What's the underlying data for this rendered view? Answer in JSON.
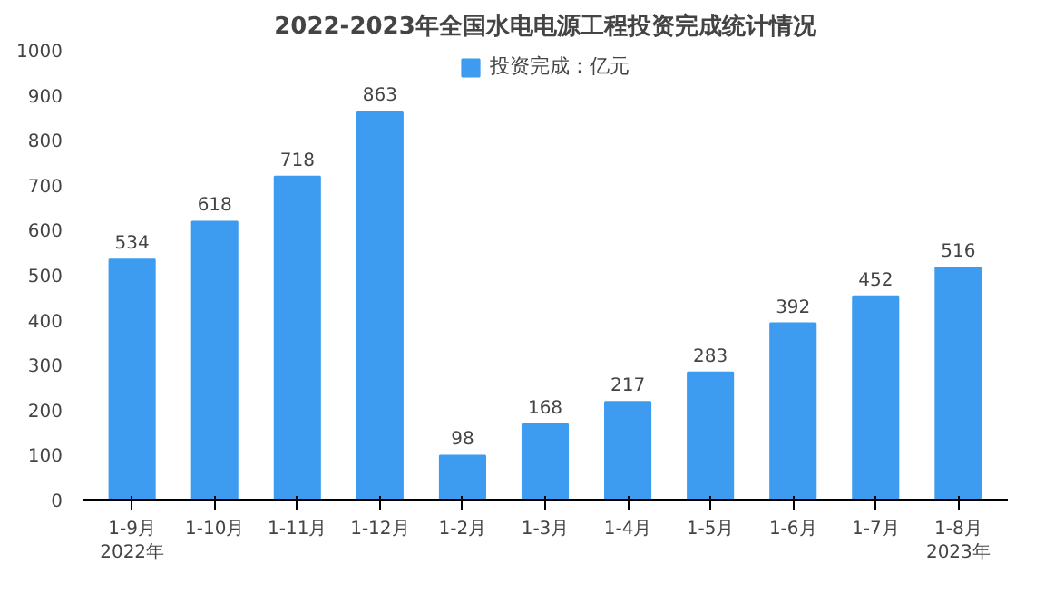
{
  "chart_data": {
    "type": "bar",
    "title": "2022-2023年全国水电电源工程投资完成统计情况",
    "categories": [
      "1-9月\n2022年",
      "1-10月",
      "1-11月",
      "1-12月",
      "1-2月",
      "1-3月",
      "1-4月",
      "1-5月",
      "1-6月",
      "1-7月",
      "1-8月\n2023年"
    ],
    "series": [
      {
        "name": "投资完成：亿元",
        "color": "#3d9cf0",
        "values": [
          534,
          618,
          718,
          863,
          98,
          168,
          217,
          283,
          392,
          452,
          516
        ]
      }
    ],
    "ylim": [
      0,
      1000
    ],
    "yticks": [
      0,
      100,
      200,
      300,
      400,
      500,
      600,
      700,
      800,
      900,
      1000
    ],
    "data_labels": true,
    "legend": "top",
    "grid": false
  }
}
